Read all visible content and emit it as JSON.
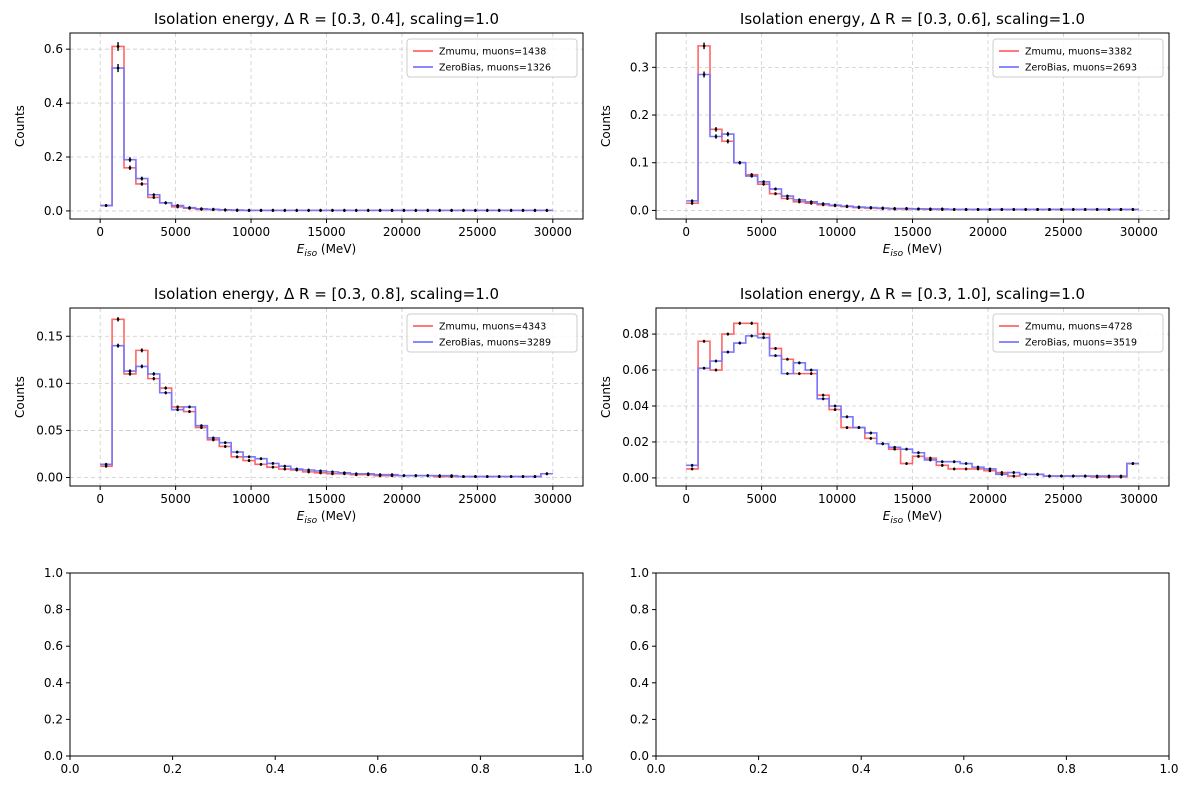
{
  "chart_data": [
    {
      "type": "step",
      "title": "Isolation energy, Δ R = [0.3, 0.4], scaling=1.0",
      "xlabel_main": "E",
      "xlabel_sub": "iso",
      "xlabel_unit": " (MeV)",
      "ylabel": "Counts",
      "xlim": [
        -2000,
        32000
      ],
      "ylim": [
        -0.03,
        0.66
      ],
      "xticks": [
        0,
        5000,
        10000,
        15000,
        20000,
        25000,
        30000
      ],
      "yticks": [
        0.0,
        0.2,
        0.4,
        0.6
      ],
      "ytick_labels": [
        "0.0",
        "0.2",
        "0.4",
        "0.6"
      ],
      "grid": true,
      "legend": "top-right",
      "series": [
        {
          "name": "Zmumu, muons=1438",
          "color": "#ff6666",
          "values": [
            0.02,
            0.61,
            0.16,
            0.1,
            0.05,
            0.03,
            0.015,
            0.01,
            0.006,
            0.005,
            0.003,
            0.002,
            0.002,
            0.002,
            0.002,
            0.002,
            0.002,
            0.002,
            0.002,
            0.002,
            0.002,
            0.002,
            0.002,
            0.002,
            0.002,
            0.002,
            0.002,
            0.002,
            0.002,
            0.002,
            0.002,
            0.002,
            0.002,
            0.002,
            0.002,
            0.002,
            0.002,
            0.002
          ]
        },
        {
          "name": "ZeroBias, muons=1326",
          "color": "#7777ff",
          "values": [
            0.02,
            0.53,
            0.19,
            0.12,
            0.06,
            0.03,
            0.02,
            0.012,
            0.008,
            0.006,
            0.004,
            0.003,
            0.002,
            0.002,
            0.002,
            0.002,
            0.002,
            0.002,
            0.002,
            0.002,
            0.002,
            0.002,
            0.002,
            0.002,
            0.002,
            0.002,
            0.002,
            0.002,
            0.002,
            0.002,
            0.002,
            0.002,
            0.002,
            0.002,
            0.002,
            0.002,
            0.002,
            0.002
          ]
        }
      ]
    },
    {
      "type": "step",
      "title": "Isolation energy, Δ R = [0.3, 0.6], scaling=1.0",
      "xlabel_main": "E",
      "xlabel_sub": "iso",
      "xlabel_unit": " (MeV)",
      "ylabel": "Counts",
      "xlim": [
        -2000,
        32000
      ],
      "ylim": [
        -0.018,
        0.372
      ],
      "xticks": [
        0,
        5000,
        10000,
        15000,
        20000,
        25000,
        30000
      ],
      "yticks": [
        0.0,
        0.1,
        0.2,
        0.3
      ],
      "ytick_labels": [
        "0.0",
        "0.1",
        "0.2",
        "0.3"
      ],
      "grid": true,
      "legend": "top-right",
      "series": [
        {
          "name": "Zmumu, muons=3382",
          "color": "#ff6666",
          "values": [
            0.015,
            0.345,
            0.17,
            0.145,
            0.1,
            0.075,
            0.055,
            0.035,
            0.025,
            0.018,
            0.015,
            0.012,
            0.01,
            0.008,
            0.006,
            0.005,
            0.004,
            0.003,
            0.003,
            0.003,
            0.002,
            0.002,
            0.002,
            0.002,
            0.002,
            0.002,
            0.002,
            0.002,
            0.002,
            0.002,
            0.002,
            0.002,
            0.002,
            0.002,
            0.002,
            0.002,
            0.002,
            0.002
          ]
        },
        {
          "name": "ZeroBias, muons=2693",
          "color": "#7777ff",
          "values": [
            0.02,
            0.285,
            0.155,
            0.16,
            0.1,
            0.072,
            0.06,
            0.045,
            0.03,
            0.022,
            0.018,
            0.014,
            0.011,
            0.009,
            0.007,
            0.006,
            0.005,
            0.004,
            0.004,
            0.003,
            0.003,
            0.003,
            0.002,
            0.002,
            0.002,
            0.002,
            0.002,
            0.002,
            0.002,
            0.002,
            0.002,
            0.002,
            0.002,
            0.002,
            0.002,
            0.002,
            0.002,
            0.002
          ]
        }
      ]
    },
    {
      "type": "step",
      "title": "Isolation energy, Δ R = [0.3, 0.8], scaling=1.0",
      "xlabel_main": "E",
      "xlabel_sub": "iso",
      "xlabel_unit": " (MeV)",
      "ylabel": "Counts",
      "xlim": [
        -2000,
        32000
      ],
      "ylim": [
        -0.009,
        0.18
      ],
      "xticks": [
        0,
        5000,
        10000,
        15000,
        20000,
        25000,
        30000
      ],
      "yticks": [
        0.0,
        0.05,
        0.1,
        0.15
      ],
      "ytick_labels": [
        "0.00",
        "0.05",
        "0.10",
        "0.15"
      ],
      "grid": true,
      "legend": "top-right",
      "series": [
        {
          "name": "Zmumu, muons=4343",
          "color": "#ff6666",
          "values": [
            0.012,
            0.168,
            0.11,
            0.135,
            0.105,
            0.095,
            0.075,
            0.07,
            0.053,
            0.04,
            0.033,
            0.022,
            0.018,
            0.014,
            0.011,
            0.009,
            0.008,
            0.006,
            0.005,
            0.004,
            0.004,
            0.003,
            0.003,
            0.002,
            0.002,
            0.002,
            0.002,
            0.002,
            0.001,
            0.001,
            0.001,
            0.001,
            0.001,
            0.001,
            0.001,
            0.001,
            0.001,
            0.004
          ]
        },
        {
          "name": "ZeroBias, muons=3289",
          "color": "#7777ff",
          "values": [
            0.014,
            0.14,
            0.113,
            0.118,
            0.11,
            0.09,
            0.072,
            0.075,
            0.055,
            0.042,
            0.037,
            0.027,
            0.022,
            0.02,
            0.015,
            0.012,
            0.009,
            0.008,
            0.007,
            0.006,
            0.005,
            0.004,
            0.004,
            0.003,
            0.003,
            0.002,
            0.002,
            0.002,
            0.002,
            0.002,
            0.001,
            0.001,
            0.001,
            0.001,
            0.001,
            0.001,
            0.001,
            0.004
          ]
        }
      ]
    },
    {
      "type": "step",
      "title": "Isolation energy, Δ R = [0.3, 1.0], scaling=1.0",
      "xlabel_main": "E",
      "xlabel_sub": "iso",
      "xlabel_unit": " (MeV)",
      "ylabel": "Counts",
      "xlim": [
        -2000,
        32000
      ],
      "ylim": [
        -0.0045,
        0.0945
      ],
      "xticks": [
        0,
        5000,
        10000,
        15000,
        20000,
        25000,
        30000
      ],
      "yticks": [
        0.0,
        0.02,
        0.04,
        0.06,
        0.08
      ],
      "ytick_labels": [
        "0.00",
        "0.02",
        "0.04",
        "0.06",
        "0.08"
      ],
      "grid": true,
      "legend": "top-right",
      "series": [
        {
          "name": "Zmumu, muons=4728",
          "color": "#ff6666",
          "values": [
            0.005,
            0.076,
            0.06,
            0.08,
            0.086,
            0.086,
            0.08,
            0.072,
            0.066,
            0.058,
            0.058,
            0.046,
            0.038,
            0.028,
            0.028,
            0.022,
            0.019,
            0.016,
            0.008,
            0.012,
            0.011,
            0.007,
            0.005,
            0.005,
            0.005,
            0.004,
            0.003,
            0.001,
            0.002,
            0.002,
            0.001,
            0.001,
            0.001,
            0.001,
            0.0005,
            0.0005,
            0.0005,
            0.008
          ]
        },
        {
          "name": "ZeroBias, muons=3519",
          "color": "#7777ff",
          "values": [
            0.007,
            0.061,
            0.065,
            0.07,
            0.075,
            0.079,
            0.078,
            0.068,
            0.058,
            0.064,
            0.06,
            0.044,
            0.04,
            0.034,
            0.028,
            0.025,
            0.019,
            0.017,
            0.016,
            0.014,
            0.01,
            0.009,
            0.009,
            0.008,
            0.006,
            0.005,
            0.002,
            0.003,
            0.002,
            0.002,
            0.001,
            0.001,
            0.001,
            0.001,
            0.001,
            0.001,
            0.001,
            0.008
          ]
        }
      ]
    },
    {
      "type": "empty",
      "title": "",
      "xlim": [
        0,
        1
      ],
      "ylim": [
        0,
        1
      ],
      "xticks": [
        0.0,
        0.2,
        0.4,
        0.6,
        0.8,
        1.0
      ],
      "yticks": [
        0.0,
        0.2,
        0.4,
        0.6,
        0.8,
        1.0
      ],
      "xtick_labels": [
        "0.0",
        "0.2",
        "0.4",
        "0.6",
        "0.8",
        "1.0"
      ],
      "ytick_labels": [
        "0.0",
        "0.2",
        "0.4",
        "0.6",
        "0.8",
        "1.0"
      ],
      "grid": false
    },
    {
      "type": "empty",
      "title": "",
      "xlim": [
        0,
        1
      ],
      "ylim": [
        0,
        1
      ],
      "xticks": [
        0.0,
        0.2,
        0.4,
        0.6,
        0.8,
        1.0
      ],
      "yticks": [
        0.0,
        0.2,
        0.4,
        0.6,
        0.8,
        1.0
      ],
      "xtick_labels": [
        "0.0",
        "0.2",
        "0.4",
        "0.6",
        "0.8",
        "1.0"
      ],
      "ytick_labels": [
        "0.0",
        "0.2",
        "0.4",
        "0.6",
        "0.8",
        "1.0"
      ],
      "grid": false
    }
  ]
}
